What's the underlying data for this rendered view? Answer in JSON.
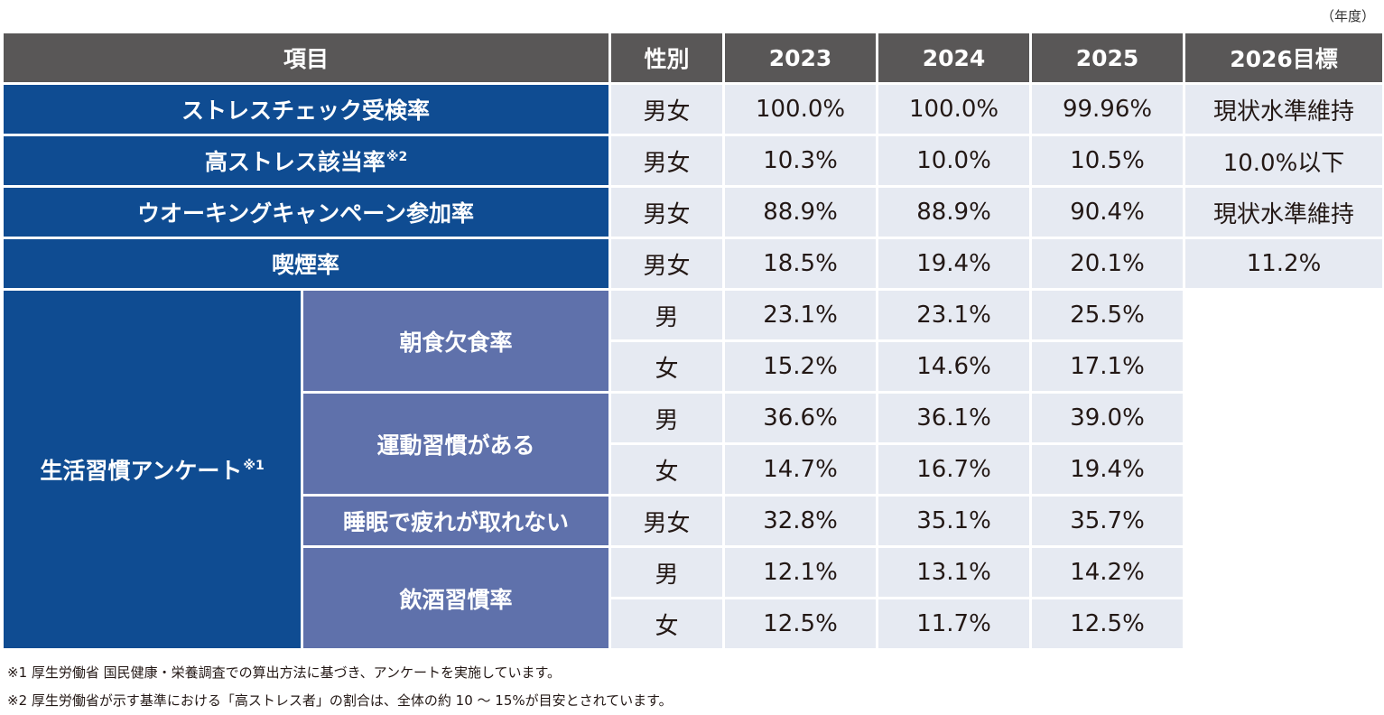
{
  "unit_label": "（年度）",
  "table": {
    "headers": {
      "item": "項目",
      "gender": "性別",
      "y2023": "2023",
      "y2024": "2024",
      "y2025": "2025",
      "target": "2026目標"
    },
    "rows": [
      {
        "label": "ストレスチェック受検率",
        "note": "",
        "gender": "男女",
        "v2023": "100.0%",
        "v2024": "100.0%",
        "v2025": "99.96%",
        "target": "現状水準維持"
      },
      {
        "label": "高ストレス該当率",
        "note": "※2",
        "gender": "男女",
        "v2023": "10.3%",
        "v2024": "10.0%",
        "v2025": "10.5%",
        "target": "10.0%以下"
      },
      {
        "label": "ウオーキングキャンペーン参加率",
        "note": "",
        "gender": "男女",
        "v2023": "88.9%",
        "v2024": "88.9%",
        "v2025": "90.4%",
        "target": "現状水準維持"
      },
      {
        "label": "喫煙率",
        "note": "",
        "gender": "男女",
        "v2023": "18.5%",
        "v2024": "19.4%",
        "v2025": "20.1%",
        "target": "11.2%"
      }
    ],
    "survey": {
      "label": "生活習慣アンケート",
      "note": "※1",
      "items": [
        {
          "label": "朝食欠食率",
          "rows": [
            {
              "gender": "男",
              "v2023": "23.1%",
              "v2024": "23.1%",
              "v2025": "25.5%"
            },
            {
              "gender": "女",
              "v2023": "15.2%",
              "v2024": "14.6%",
              "v2025": "17.1%"
            }
          ]
        },
        {
          "label": "運動習慣がある",
          "rows": [
            {
              "gender": "男",
              "v2023": "36.6%",
              "v2024": "36.1%",
              "v2025": "39.0%"
            },
            {
              "gender": "女",
              "v2023": "14.7%",
              "v2024": "16.7%",
              "v2025": "19.4%"
            }
          ]
        },
        {
          "label": "睡眠で疲れが取れない",
          "rows": [
            {
              "gender": "男女",
              "v2023": "32.8%",
              "v2024": "35.1%",
              "v2025": "35.7%"
            }
          ]
        },
        {
          "label": "飲酒習慣率",
          "rows": [
            {
              "gender": "男",
              "v2023": "12.1%",
              "v2024": "13.1%",
              "v2025": "14.2%"
            },
            {
              "gender": "女",
              "v2023": "12.5%",
              "v2024": "11.7%",
              "v2025": "12.5%"
            }
          ]
        }
      ]
    }
  },
  "footnotes": [
    "※1 厚生労働省 国民健康・栄養調査での算出方法に基づき、アンケートを実施しています。",
    "※2 厚生労働省が示す基準における「高ストレス者」の割合は、全体の約 10 ～ 15%が目安とされています。"
  ]
}
